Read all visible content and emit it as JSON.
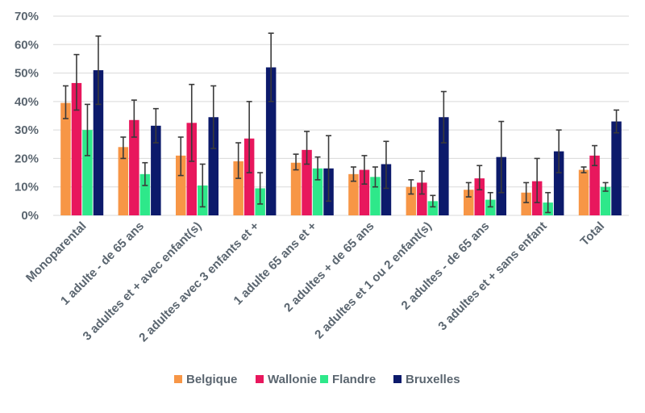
{
  "chart_data": {
    "type": "bar",
    "title": "",
    "xlabel": "",
    "ylabel": "",
    "ylim": [
      0,
      70
    ],
    "yticks": [
      "0%",
      "10%",
      "20%",
      "30%",
      "40%",
      "50%",
      "60%",
      "70%"
    ],
    "grid": true,
    "legend_position": "bottom",
    "categories": [
      "Monoparental",
      "1 adulte - de 65 ans",
      "3 adultes et + avec enfant(s)",
      "2 adultes avec 3 enfants et +",
      "1 adulte 65 ans et +",
      "2 adultes + de 65 ans",
      "2 adultes et 1 ou 2 enfant(s)",
      "2 adultes - de 65 ans",
      "3 adultes et + sans enfant",
      "Total"
    ],
    "series": [
      {
        "name": "Belgique",
        "color": "#f79646",
        "values": [
          39.5,
          24,
          21,
          19,
          18.5,
          14.5,
          10,
          9,
          8,
          16
        ],
        "err_low": [
          34,
          20,
          14,
          13,
          16,
          12,
          7.5,
          6.5,
          4.5,
          15
        ],
        "err_high": [
          45.5,
          27.5,
          27.5,
          25.5,
          21.5,
          17,
          12.5,
          11.5,
          11.5,
          17
        ]
      },
      {
        "name": "Wallonie",
        "color": "#e8175d",
        "values": [
          46.5,
          33.5,
          32.5,
          27,
          23,
          16,
          11.5,
          13,
          12,
          21
        ],
        "err_low": [
          37,
          27.5,
          19,
          15,
          18,
          11,
          7.5,
          9,
          4.5,
          17.5
        ],
        "err_high": [
          56.5,
          40.5,
          46,
          40,
          29.5,
          21,
          15.5,
          17.5,
          20,
          24.5
        ]
      },
      {
        "name": "Flandre",
        "color": "#2ee88a",
        "values": [
          30,
          14.5,
          10.5,
          9.5,
          16.5,
          13.5,
          5,
          5.5,
          4.5,
          10
        ],
        "err_low": [
          21,
          10.5,
          3,
          4,
          12.5,
          10,
          3,
          3,
          1,
          8.5
        ],
        "err_high": [
          39,
          18.5,
          18,
          15,
          20.5,
          17,
          7,
          8,
          8,
          11.5
        ]
      },
      {
        "name": "Bruxelles",
        "color": "#0c1a6b",
        "values": [
          51,
          31.5,
          34.5,
          52,
          16.5,
          18,
          34.5,
          20.5,
          22.5,
          33
        ],
        "err_low": [
          39,
          25.5,
          23.5,
          40,
          5,
          9.5,
          25.5,
          8,
          15,
          29
        ],
        "err_high": [
          63,
          37.5,
          45.5,
          64,
          28,
          26,
          43.5,
          33,
          30,
          37
        ]
      }
    ]
  }
}
